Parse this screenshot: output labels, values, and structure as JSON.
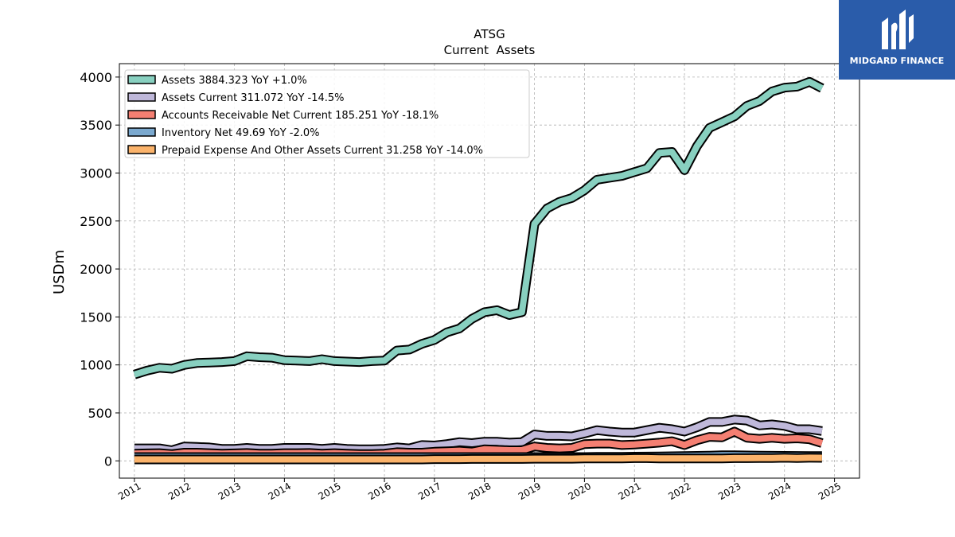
{
  "brand": {
    "name": "MIDGARD FINANCE",
    "bg": "#2a5caa"
  },
  "chart_data": {
    "type": "line",
    "title": "ATSG",
    "subtitle": "Current  Assets",
    "ylabel": "USDm",
    "xlim": [
      2010.7,
      2025.5
    ],
    "ylim": [
      -180,
      4140
    ],
    "x_ticks": [
      2011,
      2012,
      2013,
      2014,
      2015,
      2016,
      2017,
      2018,
      2019,
      2020,
      2021,
      2022,
      2023,
      2024,
      2025
    ],
    "y_ticks": [
      0,
      500,
      1000,
      1500,
      2000,
      2500,
      3000,
      3500,
      4000
    ],
    "grid": true,
    "legend_position": "top-left",
    "series": [
      {
        "name": "Assets  3884.323 YoY +1.0%",
        "color": "#88d0c0",
        "points": [
          [
            2011.0,
            900
          ],
          [
            2011.25,
            940
          ],
          [
            2011.5,
            970
          ],
          [
            2011.75,
            960
          ],
          [
            2012.0,
            1000
          ],
          [
            2012.25,
            1020
          ],
          [
            2012.5,
            1025
          ],
          [
            2012.75,
            1030
          ],
          [
            2013.0,
            1040
          ],
          [
            2013.25,
            1090
          ],
          [
            2013.5,
            1080
          ],
          [
            2013.75,
            1075
          ],
          [
            2014.0,
            1050
          ],
          [
            2014.25,
            1045
          ],
          [
            2014.5,
            1040
          ],
          [
            2014.75,
            1060
          ],
          [
            2015.0,
            1040
          ],
          [
            2015.25,
            1035
          ],
          [
            2015.5,
            1030
          ],
          [
            2015.75,
            1040
          ],
          [
            2016.0,
            1045
          ],
          [
            2016.25,
            1150
          ],
          [
            2016.5,
            1160
          ],
          [
            2016.75,
            1220
          ],
          [
            2017.0,
            1260
          ],
          [
            2017.25,
            1340
          ],
          [
            2017.5,
            1380
          ],
          [
            2017.75,
            1480
          ],
          [
            2018.0,
            1550
          ],
          [
            2018.25,
            1570
          ],
          [
            2018.5,
            1520
          ],
          [
            2018.75,
            1550
          ],
          [
            2019.0,
            2470
          ],
          [
            2019.25,
            2630
          ],
          [
            2019.5,
            2700
          ],
          [
            2019.75,
            2740
          ],
          [
            2020.0,
            2820
          ],
          [
            2020.25,
            2930
          ],
          [
            2020.5,
            2950
          ],
          [
            2020.75,
            2970
          ],
          [
            2021.0,
            3010
          ],
          [
            2021.25,
            3050
          ],
          [
            2021.5,
            3210
          ],
          [
            2021.75,
            3220
          ],
          [
            2022.0,
            3030
          ],
          [
            2022.25,
            3280
          ],
          [
            2022.5,
            3470
          ],
          [
            2022.75,
            3530
          ],
          [
            2023.0,
            3590
          ],
          [
            2023.25,
            3700
          ],
          [
            2023.5,
            3750
          ],
          [
            2023.75,
            3850
          ],
          [
            2024.0,
            3890
          ],
          [
            2024.25,
            3900
          ],
          [
            2024.5,
            3950
          ],
          [
            2024.75,
            3884
          ]
        ]
      },
      {
        "name": "Assets Current  311.072 YoY -14.5%",
        "color": "#bfb8da",
        "points": [
          [
            2011.0,
            130
          ],
          [
            2011.25,
            130
          ],
          [
            2011.5,
            130
          ],
          [
            2011.75,
            110
          ],
          [
            2012.0,
            150
          ],
          [
            2012.25,
            145
          ],
          [
            2012.5,
            140
          ],
          [
            2012.75,
            125
          ],
          [
            2013.0,
            125
          ],
          [
            2013.25,
            135
          ],
          [
            2013.5,
            125
          ],
          [
            2013.75,
            125
          ],
          [
            2014.0,
            135
          ],
          [
            2014.25,
            135
          ],
          [
            2014.5,
            135
          ],
          [
            2014.75,
            125
          ],
          [
            2015.0,
            135
          ],
          [
            2015.25,
            125
          ],
          [
            2015.5,
            120
          ],
          [
            2015.75,
            120
          ],
          [
            2016.0,
            125
          ],
          [
            2016.25,
            140
          ],
          [
            2016.5,
            130
          ],
          [
            2016.75,
            165
          ],
          [
            2017.0,
            160
          ],
          [
            2017.25,
            175
          ],
          [
            2017.5,
            195
          ],
          [
            2017.75,
            185
          ],
          [
            2018.0,
            200
          ],
          [
            2018.25,
            200
          ],
          [
            2018.5,
            190
          ],
          [
            2018.75,
            195
          ],
          [
            2019.0,
            275
          ],
          [
            2019.25,
            260
          ],
          [
            2019.5,
            260
          ],
          [
            2019.75,
            255
          ],
          [
            2020.0,
            285
          ],
          [
            2020.25,
            320
          ],
          [
            2020.5,
            305
          ],
          [
            2020.75,
            295
          ],
          [
            2021.0,
            295
          ],
          [
            2021.25,
            320
          ],
          [
            2021.5,
            345
          ],
          [
            2021.75,
            330
          ],
          [
            2022.0,
            305
          ],
          [
            2022.25,
            350
          ],
          [
            2022.5,
            405
          ],
          [
            2022.75,
            405
          ],
          [
            2023.0,
            430
          ],
          [
            2023.25,
            420
          ],
          [
            2023.5,
            370
          ],
          [
            2023.75,
            380
          ],
          [
            2024.0,
            365
          ],
          [
            2024.25,
            330
          ],
          [
            2024.5,
            330
          ],
          [
            2024.75,
            311
          ]
        ]
      },
      {
        "name": "Accounts Receivable Net Current  185.251 YoY -18.1%",
        "color": "#f47f72",
        "points": [
          [
            2011.0,
            75
          ],
          [
            2011.25,
            78
          ],
          [
            2011.5,
            80
          ],
          [
            2011.75,
            70
          ],
          [
            2012.0,
            85
          ],
          [
            2012.25,
            85
          ],
          [
            2012.5,
            80
          ],
          [
            2012.75,
            75
          ],
          [
            2013.0,
            78
          ],
          [
            2013.25,
            82
          ],
          [
            2013.5,
            75
          ],
          [
            2013.75,
            75
          ],
          [
            2014.0,
            80
          ],
          [
            2014.25,
            80
          ],
          [
            2014.5,
            82
          ],
          [
            2014.75,
            75
          ],
          [
            2015.0,
            80
          ],
          [
            2015.25,
            75
          ],
          [
            2015.5,
            70
          ],
          [
            2015.75,
            70
          ],
          [
            2016.0,
            75
          ],
          [
            2016.25,
            90
          ],
          [
            2016.5,
            85
          ],
          [
            2016.75,
            85
          ],
          [
            2017.0,
            95
          ],
          [
            2017.25,
            100
          ],
          [
            2017.5,
            105
          ],
          [
            2017.75,
            95
          ],
          [
            2018.0,
            120
          ],
          [
            2018.25,
            115
          ],
          [
            2018.5,
            110
          ],
          [
            2018.75,
            110
          ],
          [
            2019.0,
            150
          ],
          [
            2019.25,
            135
          ],
          [
            2019.5,
            130
          ],
          [
            2019.75,
            135
          ],
          [
            2020.0,
            175
          ],
          [
            2020.25,
            180
          ],
          [
            2020.5,
            180
          ],
          [
            2020.75,
            165
          ],
          [
            2021.0,
            170
          ],
          [
            2021.25,
            180
          ],
          [
            2021.5,
            190
          ],
          [
            2021.75,
            205
          ],
          [
            2022.0,
            165
          ],
          [
            2022.25,
            215
          ],
          [
            2022.5,
            250
          ],
          [
            2022.75,
            245
          ],
          [
            2023.0,
            305
          ],
          [
            2023.25,
            240
          ],
          [
            2023.5,
            230
          ],
          [
            2023.75,
            240
          ],
          [
            2024.0,
            230
          ],
          [
            2024.25,
            235
          ],
          [
            2024.5,
            225
          ],
          [
            2024.75,
            185
          ]
        ]
      },
      {
        "name": "Inventory Net  49.69 YoY -2.0%",
        "color": "#7ba9cf",
        "points": [
          [
            2011.0,
            40
          ],
          [
            2011.25,
            40
          ],
          [
            2011.5,
            40
          ],
          [
            2011.75,
            40
          ],
          [
            2012.0,
            40
          ],
          [
            2012.25,
            40
          ],
          [
            2012.5,
            40
          ],
          [
            2012.75,
            40
          ],
          [
            2013.0,
            40
          ],
          [
            2013.25,
            40
          ],
          [
            2013.5,
            40
          ],
          [
            2013.75,
            40
          ],
          [
            2014.0,
            40
          ],
          [
            2014.25,
            40
          ],
          [
            2014.5,
            40
          ],
          [
            2014.75,
            40
          ],
          [
            2015.0,
            40
          ],
          [
            2015.25,
            40
          ],
          [
            2015.5,
            40
          ],
          [
            2015.75,
            40
          ],
          [
            2016.0,
            40
          ],
          [
            2016.25,
            40
          ],
          [
            2016.5,
            40
          ],
          [
            2016.75,
            40
          ],
          [
            2017.0,
            40
          ],
          [
            2017.25,
            40
          ],
          [
            2017.5,
            40
          ],
          [
            2017.75,
            40
          ],
          [
            2018.0,
            40
          ],
          [
            2018.25,
            40
          ],
          [
            2018.5,
            40
          ],
          [
            2018.75,
            40
          ],
          [
            2019.0,
            40
          ],
          [
            2019.25,
            40
          ],
          [
            2019.5,
            40
          ],
          [
            2019.75,
            40
          ],
          [
            2020.0,
            40
          ],
          [
            2020.25,
            42
          ],
          [
            2020.5,
            42
          ],
          [
            2020.75,
            42
          ],
          [
            2021.0,
            44
          ],
          [
            2021.25,
            45
          ],
          [
            2021.5,
            46
          ],
          [
            2021.75,
            48
          ],
          [
            2022.0,
            50
          ],
          [
            2022.25,
            52
          ],
          [
            2022.5,
            55
          ],
          [
            2022.75,
            58
          ],
          [
            2023.0,
            58
          ],
          [
            2023.25,
            56
          ],
          [
            2023.5,
            55
          ],
          [
            2023.75,
            53
          ],
          [
            2024.0,
            52
          ],
          [
            2024.25,
            51
          ],
          [
            2024.5,
            50
          ],
          [
            2024.75,
            49.69
          ]
        ]
      },
      {
        "name": "Prepaid Expense And Other Assets Current  31.258 YoY -14.0%",
        "color": "#fbb36b",
        "points": [
          [
            2011.0,
            15
          ],
          [
            2011.25,
            15
          ],
          [
            2011.5,
            15
          ],
          [
            2011.75,
            15
          ],
          [
            2012.0,
            15
          ],
          [
            2012.25,
            15
          ],
          [
            2012.5,
            15
          ],
          [
            2012.75,
            15
          ],
          [
            2013.0,
            15
          ],
          [
            2013.25,
            15
          ],
          [
            2013.5,
            15
          ],
          [
            2013.75,
            15
          ],
          [
            2014.0,
            15
          ],
          [
            2014.25,
            15
          ],
          [
            2014.5,
            15
          ],
          [
            2014.75,
            15
          ],
          [
            2015.0,
            15
          ],
          [
            2015.25,
            15
          ],
          [
            2015.5,
            15
          ],
          [
            2015.75,
            15
          ],
          [
            2016.0,
            15
          ],
          [
            2016.25,
            15
          ],
          [
            2016.5,
            15
          ],
          [
            2016.75,
            15
          ],
          [
            2017.0,
            18
          ],
          [
            2017.25,
            18
          ],
          [
            2017.5,
            18
          ],
          [
            2017.75,
            20
          ],
          [
            2018.0,
            20
          ],
          [
            2018.25,
            20
          ],
          [
            2018.5,
            20
          ],
          [
            2018.75,
            20
          ],
          [
            2019.0,
            22
          ],
          [
            2019.25,
            22
          ],
          [
            2019.5,
            22
          ],
          [
            2019.75,
            22
          ],
          [
            2020.0,
            25
          ],
          [
            2020.25,
            25
          ],
          [
            2020.5,
            25
          ],
          [
            2020.75,
            25
          ],
          [
            2021.0,
            28
          ],
          [
            2021.25,
            28
          ],
          [
            2021.5,
            25
          ],
          [
            2021.75,
            25
          ],
          [
            2022.0,
            25
          ],
          [
            2022.25,
            25
          ],
          [
            2022.5,
            25
          ],
          [
            2022.75,
            25
          ],
          [
            2023.0,
            28
          ],
          [
            2023.25,
            28
          ],
          [
            2023.5,
            30
          ],
          [
            2023.75,
            30
          ],
          [
            2024.0,
            32
          ],
          [
            2024.25,
            30
          ],
          [
            2024.5,
            32
          ],
          [
            2024.75,
            31.258
          ]
        ]
      }
    ]
  }
}
